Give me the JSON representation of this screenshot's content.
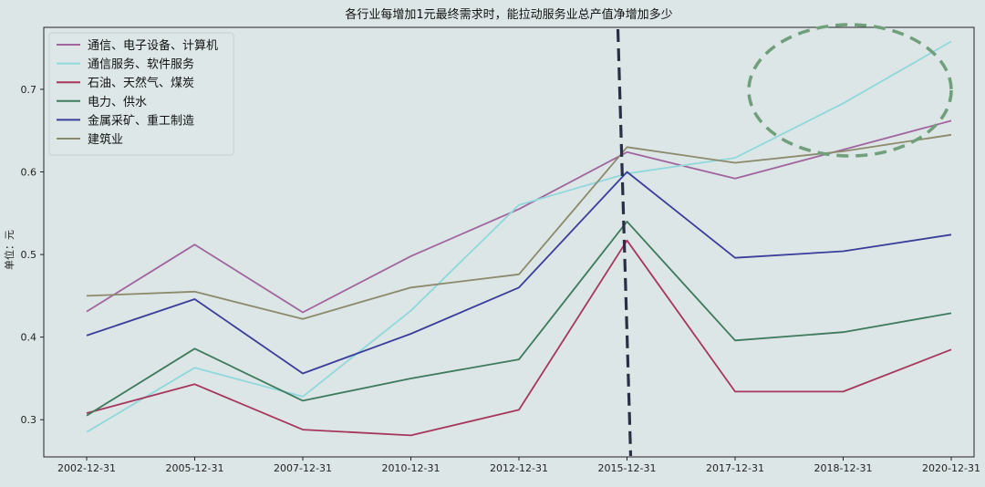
{
  "chart_data": {
    "type": "line",
    "title": "各行业每增加1元最终需求时，能拉动服务业总产值净增加多少",
    "ylabel": "单位：元",
    "xlabel": "",
    "categories": [
      "2002-12-31",
      "2005-12-31",
      "2007-12-31",
      "2010-12-31",
      "2012-12-31",
      "2015-12-31",
      "2017-12-31",
      "2018-12-31",
      "2020-12-31"
    ],
    "ylim": [
      0.255,
      0.775
    ],
    "yticks": [
      "0.3",
      "0.4",
      "0.5",
      "0.6",
      "0.7"
    ],
    "ytick_values": [
      0.3,
      0.4,
      0.5,
      0.6,
      0.7
    ],
    "grid": false,
    "legend_position": "top-left",
    "vertical_marker": "2015-12-31",
    "series": [
      {
        "name": "通信、电子设备、计算机",
        "color": "#a0659e",
        "values": [
          0.431,
          0.512,
          0.43,
          0.498,
          0.555,
          0.624,
          0.592,
          0.627,
          0.662
        ]
      },
      {
        "name": "通信服务、软件服务",
        "color": "#8fd8dc",
        "values": [
          0.285,
          0.363,
          0.328,
          0.432,
          0.56,
          0.598,
          0.617,
          0.683,
          0.758
        ]
      },
      {
        "name": "石油、天然气、煤炭",
        "color": "#a6375c",
        "values": [
          0.308,
          0.343,
          0.288,
          0.281,
          0.312,
          0.517,
          0.334,
          0.334,
          0.385
        ]
      },
      {
        "name": "电力、供水",
        "color": "#3e7a5e",
        "values": [
          0.305,
          0.386,
          0.323,
          0.35,
          0.373,
          0.54,
          0.396,
          0.406,
          0.429
        ]
      },
      {
        "name": "金属采矿、重工制造",
        "color": "#3a3e9a",
        "values": [
          0.402,
          0.446,
          0.356,
          0.404,
          0.46,
          0.6,
          0.496,
          0.504,
          0.524
        ]
      },
      {
        "name": "建筑业",
        "color": "#8b8a6c",
        "values": [
          0.45,
          0.455,
          0.422,
          0.46,
          0.476,
          0.63,
          0.611,
          0.625,
          0.645
        ]
      }
    ]
  }
}
